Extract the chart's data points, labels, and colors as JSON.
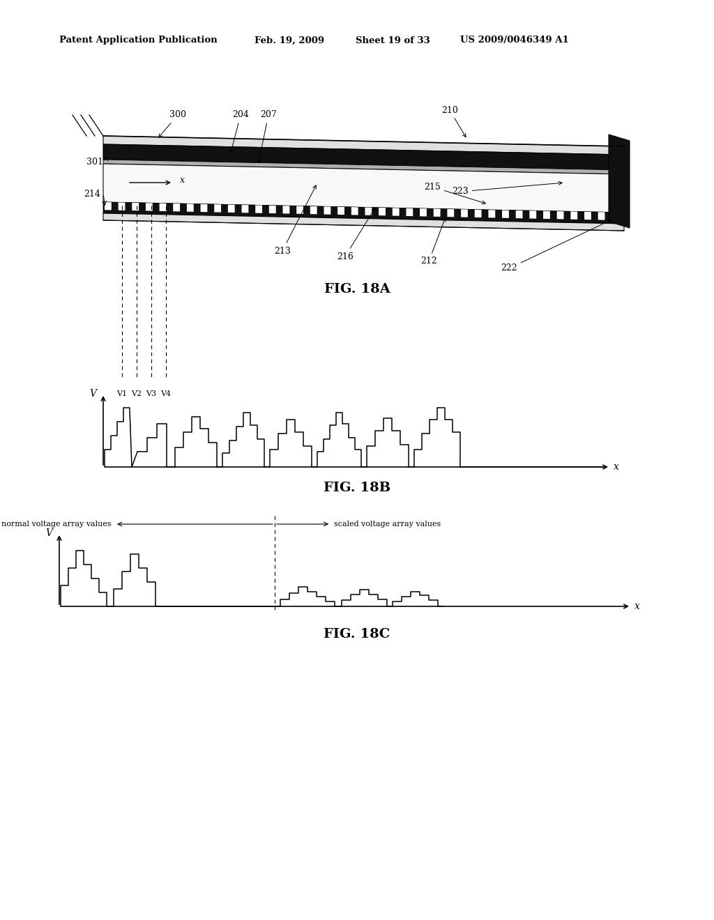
{
  "title_text": "Patent Application Publication",
  "title_date": "Feb. 19, 2009",
  "title_sheet": "Sheet 19 of 33",
  "title_patent": "US 2009/0046349 A1",
  "fig18a_label": "FIG. 18A",
  "fig18b_label": "FIG. 18B",
  "fig18c_label": "FIG. 18C",
  "bg_color": "#ffffff",
  "dark_fill": "#111111",
  "med_gray": "#666666",
  "light_gray": "#cccccc"
}
